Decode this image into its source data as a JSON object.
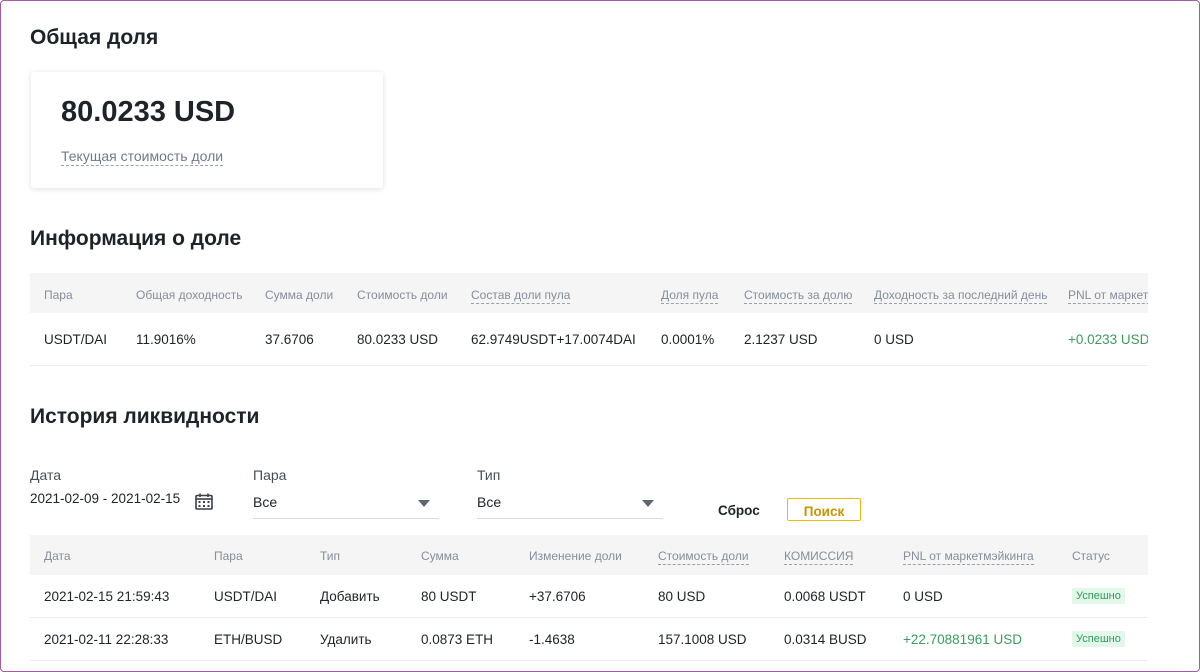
{
  "share_total": {
    "title": "Общая доля",
    "value": "80.0233 USD",
    "label": "Текущая стоимость доли"
  },
  "share_info": {
    "title": "Информация о доле",
    "columns": [
      "Пара",
      "Общая доходность",
      "Сумма доли",
      "Стоимость доли",
      "Состав доли пула",
      "Доля пула",
      "Стоимость за долю",
      "Доходность за последний день",
      "PNL от маркетмэйкинга"
    ],
    "row": [
      "USDT/DAI",
      "11.9016%",
      "37.6706",
      "80.0233 USD",
      "62.9749USDT+17.0074DAI",
      "0.0001%",
      "2.1237 USD",
      "0 USD",
      "+0.0233 USD"
    ]
  },
  "liquidity_history": {
    "title": "История ликвидности",
    "filters": {
      "date_label": "Дата",
      "date_value": "2021-02-09 - 2021-02-15",
      "pair_label": "Пара",
      "pair_value": "Все",
      "type_label": "Тип",
      "type_value": "Все"
    },
    "reset_label": "Сброс",
    "search_label": "Поиск",
    "columns": [
      "Дата",
      "Пара",
      "Тип",
      "Сумма",
      "Изменение доли",
      "Стоимость доли",
      "КОМИССИЯ",
      "PNL от маркетмэйкинга",
      "Статус"
    ],
    "rows": [
      [
        "2021-02-15 21:59:43",
        "USDT/DAI",
        "Добавить",
        "80 USDT",
        "+37.6706",
        "80 USD",
        "0.0068 USDT",
        "0 USD",
        "Успешно"
      ],
      [
        "2021-02-11 22:28:33",
        "ETH/BUSD",
        "Удалить",
        "0.0873 ETH",
        "-1.4638",
        "157.1008 USD",
        "0.0314 BUSD",
        "+22.70881961 USD",
        "Успешно"
      ]
    ]
  },
  "icons": {
    "calendar": "calendar-icon",
    "dropdown": "chevron-down-icon"
  },
  "colors": {
    "accent": "#f0b90b",
    "positive": "#3a9d5d",
    "badge_bg": "#e3f6ea"
  }
}
